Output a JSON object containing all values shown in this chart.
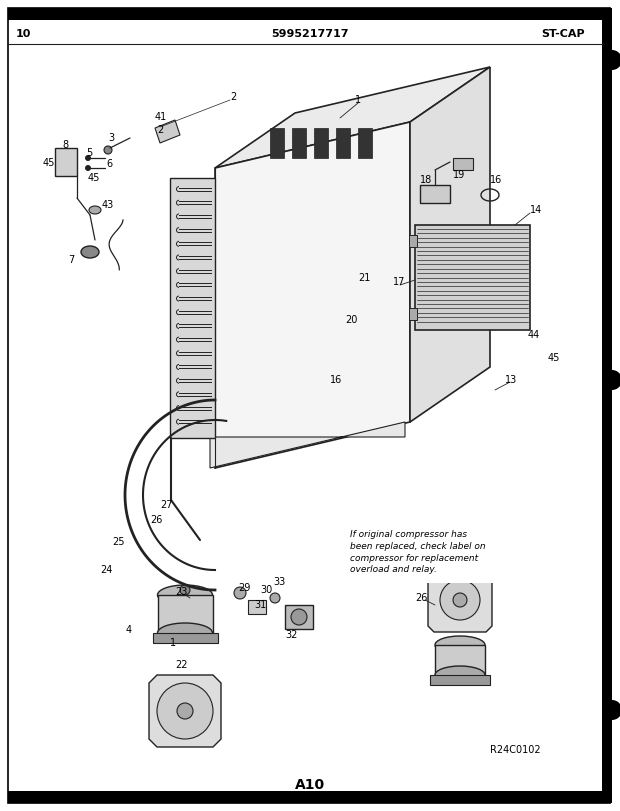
{
  "page_number": "10",
  "header_center": "5995217717",
  "header_right": "ST-CAP",
  "footer_center": "A10",
  "footer_right": "R24C0102",
  "background_color": "#ffffff",
  "border_color": "#000000",
  "text_color": "#000000",
  "note_text": "If original compressor has\nbeen replaced, check label on\ncompressor for replacement\noverload and relay.",
  "line_color": "#222222",
  "fridge_fill": "#f5f5f5",
  "fridge_side_fill": "#e0e0e0",
  "fridge_top_fill": "#ebebeb",
  "coil_color": "#555555"
}
